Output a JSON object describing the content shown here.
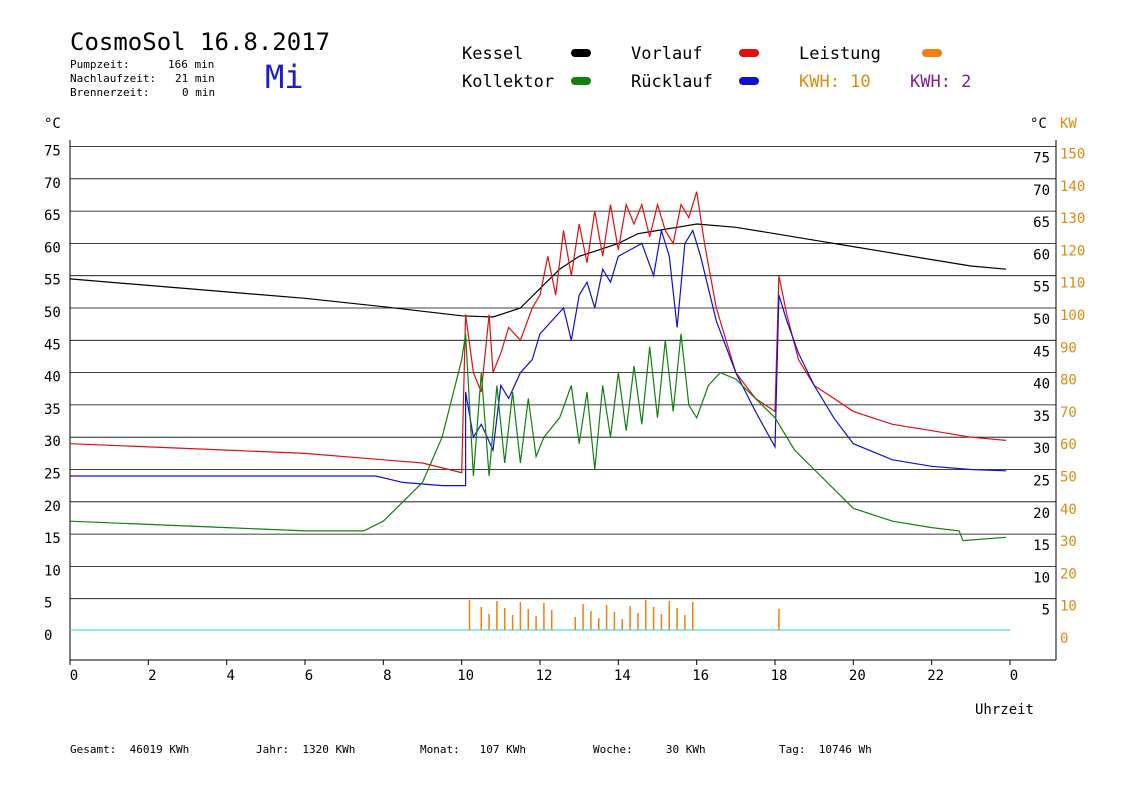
{
  "header": {
    "title": "CosmoSol 16.8.2017",
    "pump_label": "Pumpzeit:",
    "pump_value": "166 min",
    "after_label": "Nachlaufzeit:",
    "after_value": "21 min",
    "burner_label": "Brennerzeit:",
    "burner_value": "0 min",
    "weekday": "Mi"
  },
  "legend": {
    "kessel": "Kessel",
    "kollektor": "Kollektor",
    "vorlauf": "Vorlauf",
    "ruecklauf": "Rücklauf",
    "leistung": "Leistung",
    "kwh1": "KWH: 10",
    "kwh2": "KWH: 2"
  },
  "colors": {
    "kessel": "#000000",
    "vorlauf": "#e01010",
    "ruecklauf": "#1010d0",
    "kollektor": "#108010",
    "leistung": "#f08010",
    "kwh2": "#802090",
    "baseline": "#40e0e0",
    "right_axis_kw": "#e08a10"
  },
  "footer": {
    "gesamt": "Gesamt:  46019 KWh",
    "jahr": "Jahr:  1320 KWh",
    "monat": "Monat:   107 KWh",
    "woche": "Woche:     30 KWh",
    "tag": "Tag:  10746 Wh"
  },
  "chart_data": {
    "type": "line",
    "xlabel": "Uhrzeit",
    "ylabel_left": "°C",
    "ylabel_right": "°C",
    "ylabel_right2": "KW",
    "xlim": [
      0,
      24
    ],
    "ylim": [
      -4,
      78
    ],
    "x_ticks": [
      "0",
      "2",
      "4",
      "6",
      "8",
      "10",
      "12",
      "14",
      "16",
      "18",
      "20",
      "22",
      "0"
    ],
    "y_ticks_left": [
      "0",
      "5",
      "10",
      "15",
      "20",
      "25",
      "30",
      "35",
      "40",
      "45",
      "50",
      "55",
      "60",
      "65",
      "70",
      "75"
    ],
    "y_ticks_right": [
      "5",
      "10",
      "15",
      "20",
      "25",
      "30",
      "35",
      "40",
      "45",
      "50",
      "55",
      "60",
      "65",
      "70",
      "75"
    ],
    "y_ticks_kw": [
      "0",
      "10",
      "20",
      "30",
      "40",
      "50",
      "60",
      "70",
      "80",
      "90",
      "100",
      "110",
      "120",
      "130",
      "140",
      "150"
    ],
    "series": [
      {
        "name": "Kessel",
        "color": "#000000",
        "points": [
          [
            0,
            54.5
          ],
          [
            2,
            53.5
          ],
          [
            4,
            52.5
          ],
          [
            6,
            51.5
          ],
          [
            8,
            50.2
          ],
          [
            10,
            48.8
          ],
          [
            10.8,
            48.6
          ],
          [
            11.5,
            50
          ],
          [
            12,
            53
          ],
          [
            12.5,
            56
          ],
          [
            13,
            58
          ],
          [
            13.5,
            59
          ],
          [
            14,
            60
          ],
          [
            14.5,
            61.5
          ],
          [
            15,
            62
          ],
          [
            15.5,
            62.5
          ],
          [
            16,
            63
          ],
          [
            17,
            62.5
          ],
          [
            18,
            61.5
          ],
          [
            19,
            60.5
          ],
          [
            20,
            59.5
          ],
          [
            21,
            58.5
          ],
          [
            22,
            57.5
          ],
          [
            23,
            56.5
          ],
          [
            23.9,
            56
          ]
        ]
      },
      {
        "name": "Vorlauf",
        "color": "#e01010",
        "points": [
          [
            0,
            29
          ],
          [
            2,
            28.5
          ],
          [
            4,
            28
          ],
          [
            6,
            27.5
          ],
          [
            8,
            26.5
          ],
          [
            9,
            26
          ],
          [
            10,
            24.5
          ],
          [
            10.1,
            49
          ],
          [
            10.3,
            40
          ],
          [
            10.5,
            37
          ],
          [
            10.7,
            49
          ],
          [
            10.8,
            40
          ],
          [
            11,
            43
          ],
          [
            11.2,
            47
          ],
          [
            11.5,
            45
          ],
          [
            11.8,
            50
          ],
          [
            12,
            52
          ],
          [
            12.2,
            58
          ],
          [
            12.4,
            52
          ],
          [
            12.6,
            62
          ],
          [
            12.8,
            55
          ],
          [
            13,
            63
          ],
          [
            13.2,
            57
          ],
          [
            13.4,
            65
          ],
          [
            13.6,
            58
          ],
          [
            13.8,
            66
          ],
          [
            14,
            59
          ],
          [
            14.2,
            66
          ],
          [
            14.4,
            63
          ],
          [
            14.6,
            66
          ],
          [
            14.8,
            61
          ],
          [
            15,
            66
          ],
          [
            15.2,
            62
          ],
          [
            15.4,
            60
          ],
          [
            15.6,
            66
          ],
          [
            15.8,
            64
          ],
          [
            16,
            68
          ],
          [
            16.2,
            60
          ],
          [
            16.5,
            50
          ],
          [
            17,
            40
          ],
          [
            17.5,
            36
          ],
          [
            18,
            34
          ],
          [
            18.1,
            55
          ],
          [
            18.3,
            49
          ],
          [
            18.6,
            42
          ],
          [
            19,
            38
          ],
          [
            19.5,
            36
          ],
          [
            20,
            34
          ],
          [
            21,
            32
          ],
          [
            22,
            31
          ],
          [
            23,
            30
          ],
          [
            23.9,
            29.5
          ]
        ]
      },
      {
        "name": "Rücklauf",
        "color": "#1010d0",
        "points": [
          [
            0,
            24
          ],
          [
            2,
            24
          ],
          [
            4,
            24
          ],
          [
            6,
            24
          ],
          [
            7.8,
            24
          ],
          [
            8.5,
            23
          ],
          [
            9.5,
            22.5
          ],
          [
            10.1,
            22.5
          ],
          [
            10.1,
            37
          ],
          [
            10.3,
            30
          ],
          [
            10.5,
            32
          ],
          [
            10.8,
            28
          ],
          [
            11,
            38
          ],
          [
            11.2,
            36
          ],
          [
            11.5,
            40
          ],
          [
            11.8,
            42
          ],
          [
            12,
            46
          ],
          [
            12.3,
            48
          ],
          [
            12.6,
            50
          ],
          [
            12.8,
            45
          ],
          [
            13,
            52
          ],
          [
            13.2,
            54
          ],
          [
            13.4,
            50
          ],
          [
            13.6,
            56
          ],
          [
            13.8,
            54
          ],
          [
            14,
            58
          ],
          [
            14.3,
            59
          ],
          [
            14.6,
            60
          ],
          [
            14.9,
            55
          ],
          [
            15.1,
            62
          ],
          [
            15.3,
            58
          ],
          [
            15.5,
            47
          ],
          [
            15.7,
            60
          ],
          [
            15.9,
            62
          ],
          [
            16.1,
            58
          ],
          [
            16.5,
            48
          ],
          [
            17,
            40
          ],
          [
            17.5,
            34
          ],
          [
            18,
            28.5
          ],
          [
            18.1,
            52
          ],
          [
            18.3,
            48
          ],
          [
            18.6,
            43
          ],
          [
            19,
            38
          ],
          [
            19.5,
            33
          ],
          [
            20,
            29
          ],
          [
            21,
            26.5
          ],
          [
            22,
            25.5
          ],
          [
            23,
            25
          ],
          [
            23.9,
            24.8
          ]
        ]
      },
      {
        "name": "Kollektor",
        "color": "#108010",
        "points": [
          [
            0,
            17
          ],
          [
            2,
            16.5
          ],
          [
            4,
            16
          ],
          [
            6,
            15.5
          ],
          [
            7.5,
            15.5
          ],
          [
            8,
            17
          ],
          [
            8.5,
            20
          ],
          [
            9,
            23
          ],
          [
            9.5,
            30
          ],
          [
            10,
            42
          ],
          [
            10.1,
            46
          ],
          [
            10.3,
            24
          ],
          [
            10.5,
            40
          ],
          [
            10.7,
            24
          ],
          [
            10.9,
            38
          ],
          [
            11.1,
            26
          ],
          [
            11.3,
            37
          ],
          [
            11.5,
            26
          ],
          [
            11.7,
            36
          ],
          [
            11.9,
            27
          ],
          [
            12.1,
            30
          ],
          [
            12.5,
            33
          ],
          [
            12.8,
            38
          ],
          [
            13,
            29
          ],
          [
            13.2,
            37
          ],
          [
            13.4,
            25
          ],
          [
            13.6,
            38
          ],
          [
            13.8,
            30
          ],
          [
            14,
            40
          ],
          [
            14.2,
            31
          ],
          [
            14.4,
            41
          ],
          [
            14.6,
            32
          ],
          [
            14.8,
            44
          ],
          [
            15,
            33
          ],
          [
            15.2,
            45
          ],
          [
            15.4,
            34
          ],
          [
            15.6,
            46
          ],
          [
            15.8,
            35
          ],
          [
            16,
            33
          ],
          [
            16.3,
            38
          ],
          [
            16.6,
            40
          ],
          [
            17,
            39
          ],
          [
            17.5,
            36
          ],
          [
            18,
            33
          ],
          [
            18.5,
            28
          ],
          [
            19,
            25
          ],
          [
            19.5,
            22
          ],
          [
            20,
            19
          ],
          [
            21,
            17
          ],
          [
            22,
            16
          ],
          [
            22.7,
            15.5
          ],
          [
            22.8,
            14
          ],
          [
            23.9,
            14.5
          ]
        ]
      }
    ]
  }
}
